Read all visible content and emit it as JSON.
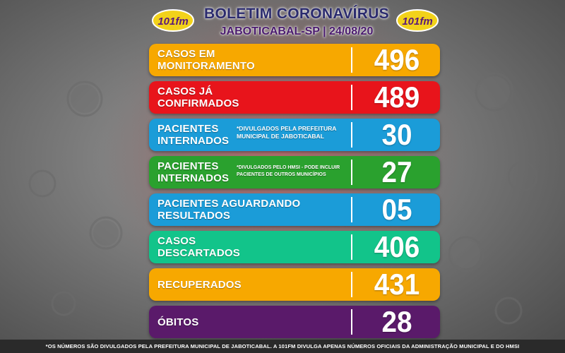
{
  "header": {
    "title": "BOLETIM CORONAVÍRUS",
    "subtitle": "JABOTICABAL-SP | 24/08/20",
    "logo_text": "101fm"
  },
  "rows": [
    {
      "label": "CASOS EM MONITORAMENTO",
      "note": "",
      "value": "496",
      "color": "#f7a800"
    },
    {
      "label": "CASOS JÁ CONFIRMADOS",
      "note": "",
      "value": "489",
      "color": "#e8141b"
    },
    {
      "label": "PACIENTES INTERNADOS",
      "note": "*DIVULGADOS PELA PREFEITURA MUNICIPAL DE JABOTICABAL",
      "value": "30",
      "color": "#1b9cd8"
    },
    {
      "label": "PACIENTES INTERNADOS",
      "note": "*DIVULGADOS PELO HMSI - PODE INCLUIR PACIENTES DE OUTROS MUNICÍPIOS",
      "value": "27",
      "color": "#2aa12e"
    },
    {
      "label": "PACIENTES AGUARDANDO RESULTADOS",
      "note": "",
      "value": "05",
      "color": "#1b9cd8"
    },
    {
      "label": "CASOS DESCARTADOS",
      "note": "",
      "value": "406",
      "color": "#12c48a"
    },
    {
      "label": "RECUPERADOS",
      "note": "",
      "value": "431",
      "color": "#f7a800"
    },
    {
      "label": "ÓBITOS",
      "note": "",
      "value": "28",
      "color": "#5a1a6a"
    }
  ],
  "footer": {
    "text": "*OS NÚMEROS SÃO DIVULGADOS PELA PREFEITURA MUNICIPAL DE JABOTICABAL. A 101FM DIVULGA APENAS NÚMEROS OFICIAIS DA ADMINISTRAÇÃO MUNICIPAL E DO HMSI"
  }
}
